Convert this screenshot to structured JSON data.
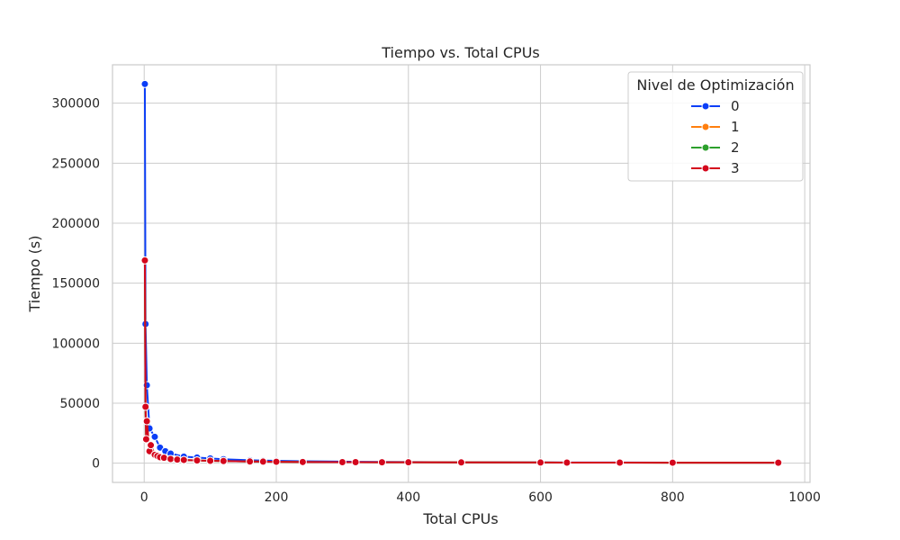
{
  "chart_data": {
    "type": "line",
    "title": "Tiempo vs. Total CPUs",
    "xlabel": "Total CPUs",
    "ylabel": "Tiempo (s)",
    "xlim": [
      -48,
      1008
    ],
    "ylim": [
      -16000,
      332000
    ],
    "xticks": [
      0,
      200,
      400,
      600,
      800,
      1000
    ],
    "yticks": [
      0,
      50000,
      100000,
      150000,
      200000,
      250000,
      300000
    ],
    "grid": true,
    "legend": {
      "title": "Nivel de Optimización",
      "placement": "top-right"
    },
    "series": [
      {
        "name": "0",
        "color": "#0b3ef7",
        "points": [
          [
            1,
            316000
          ],
          [
            2,
            116000
          ],
          [
            4,
            65000
          ],
          [
            8,
            29000
          ],
          [
            16,
            22000
          ],
          [
            24,
            13000
          ],
          [
            32,
            10000
          ],
          [
            40,
            8000
          ],
          [
            60,
            5500
          ],
          [
            80,
            4700
          ],
          [
            100,
            4000
          ],
          [
            120,
            3300
          ],
          [
            160,
            2500
          ],
          [
            180,
            2200
          ],
          [
            200,
            2000
          ],
          [
            240,
            1600
          ],
          [
            300,
            1300
          ],
          [
            320,
            1200
          ],
          [
            360,
            1100
          ],
          [
            400,
            1000
          ],
          [
            480,
            800
          ],
          [
            600,
            650
          ],
          [
            640,
            600
          ],
          [
            720,
            550
          ],
          [
            800,
            500
          ],
          [
            960,
            400
          ]
        ]
      },
      {
        "name": "1",
        "color": "#ff7f0e",
        "points": [
          [
            1,
            169000
          ],
          [
            2,
            47000
          ],
          [
            3,
            20000
          ],
          [
            4,
            35000
          ],
          [
            8,
            10000
          ],
          [
            10,
            15000
          ],
          [
            16,
            7000
          ],
          [
            20,
            6000
          ],
          [
            24,
            5000
          ],
          [
            30,
            4500
          ],
          [
            40,
            3500
          ],
          [
            50,
            3000
          ],
          [
            60,
            2700
          ],
          [
            80,
            2300
          ],
          [
            100,
            2000
          ],
          [
            120,
            1800
          ],
          [
            160,
            1400
          ],
          [
            180,
            1300
          ],
          [
            200,
            1200
          ],
          [
            240,
            1000
          ],
          [
            300,
            900
          ],
          [
            320,
            850
          ],
          [
            360,
            800
          ],
          [
            400,
            750
          ],
          [
            480,
            650
          ],
          [
            600,
            550
          ],
          [
            640,
            500
          ],
          [
            720,
            480
          ],
          [
            800,
            450
          ],
          [
            960,
            400
          ]
        ]
      },
      {
        "name": "2",
        "color": "#2ca02c",
        "points": [
          [
            1,
            169000
          ],
          [
            2,
            47000
          ],
          [
            3,
            20000
          ],
          [
            4,
            35000
          ],
          [
            8,
            10000
          ],
          [
            10,
            15000
          ],
          [
            16,
            7000
          ],
          [
            20,
            6000
          ],
          [
            24,
            5000
          ],
          [
            30,
            4500
          ],
          [
            40,
            3500
          ],
          [
            50,
            3000
          ],
          [
            60,
            2700
          ],
          [
            80,
            2300
          ],
          [
            100,
            2000
          ],
          [
            120,
            1800
          ],
          [
            160,
            1400
          ],
          [
            180,
            1300
          ],
          [
            200,
            1200
          ],
          [
            240,
            1000
          ],
          [
            300,
            900
          ],
          [
            320,
            850
          ],
          [
            360,
            800
          ],
          [
            400,
            750
          ],
          [
            480,
            650
          ],
          [
            600,
            550
          ],
          [
            640,
            500
          ],
          [
            720,
            480
          ],
          [
            800,
            450
          ],
          [
            960,
            400
          ]
        ]
      },
      {
        "name": "3",
        "color": "#d4061c",
        "points": [
          [
            1,
            169000
          ],
          [
            2,
            47000
          ],
          [
            3,
            20000
          ],
          [
            4,
            35000
          ],
          [
            8,
            10000
          ],
          [
            10,
            15000
          ],
          [
            16,
            7000
          ],
          [
            20,
            6000
          ],
          [
            24,
            5000
          ],
          [
            30,
            4500
          ],
          [
            40,
            3500
          ],
          [
            50,
            3000
          ],
          [
            60,
            2700
          ],
          [
            80,
            2300
          ],
          [
            100,
            2000
          ],
          [
            120,
            1800
          ],
          [
            160,
            1400
          ],
          [
            180,
            1300
          ],
          [
            200,
            1200
          ],
          [
            240,
            1000
          ],
          [
            300,
            900
          ],
          [
            320,
            850
          ],
          [
            360,
            800
          ],
          [
            400,
            750
          ],
          [
            480,
            650
          ],
          [
            600,
            550
          ],
          [
            640,
            500
          ],
          [
            720,
            480
          ],
          [
            800,
            450
          ],
          [
            960,
            400
          ]
        ]
      }
    ]
  }
}
